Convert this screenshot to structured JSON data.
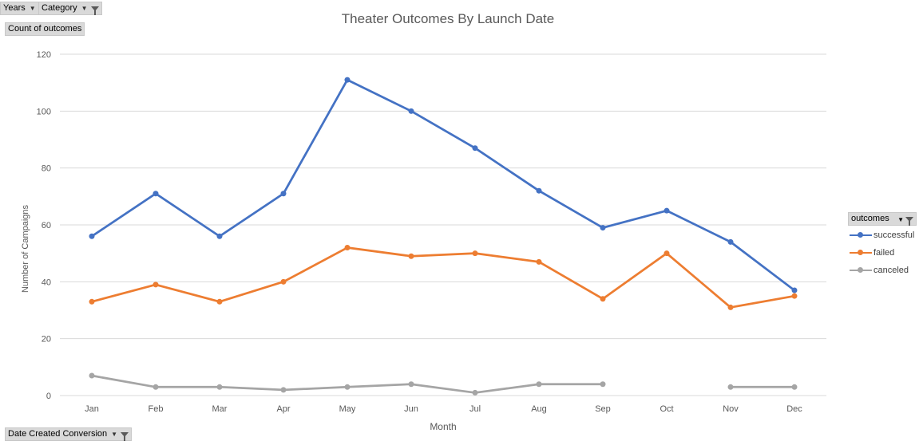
{
  "filters": {
    "years_label": "Years",
    "category_label": "Category",
    "value_label": "Count of outcomes",
    "axis_field_label": "Date Created Conversion"
  },
  "chart_data": {
    "type": "line",
    "title": "Theater Outcomes By Launch Date",
    "xlabel": "Month",
    "ylabel": "Number of Campaigns",
    "categories": [
      "Jan",
      "Feb",
      "Mar",
      "Apr",
      "May",
      "Jun",
      "Jul",
      "Aug",
      "Sep",
      "Oct",
      "Nov",
      "Dec"
    ],
    "ylim": [
      0,
      120
    ],
    "yticks": [
      0,
      20,
      40,
      60,
      80,
      100,
      120
    ],
    "grid": true,
    "legend_title": "outcomes",
    "legend_position": "right",
    "series": [
      {
        "name": "successful",
        "color": "#4472c4",
        "values": [
          56,
          71,
          56,
          71,
          111,
          100,
          87,
          72,
          59,
          65,
          54,
          37
        ]
      },
      {
        "name": "failed",
        "color": "#ed7d31",
        "values": [
          33,
          39,
          33,
          40,
          52,
          49,
          50,
          47,
          34,
          50,
          31,
          35
        ]
      },
      {
        "name": "canceled",
        "color": "#a5a5a5",
        "values": [
          7,
          3,
          3,
          2,
          3,
          4,
          1,
          4,
          4,
          null,
          3,
          3
        ]
      }
    ]
  }
}
